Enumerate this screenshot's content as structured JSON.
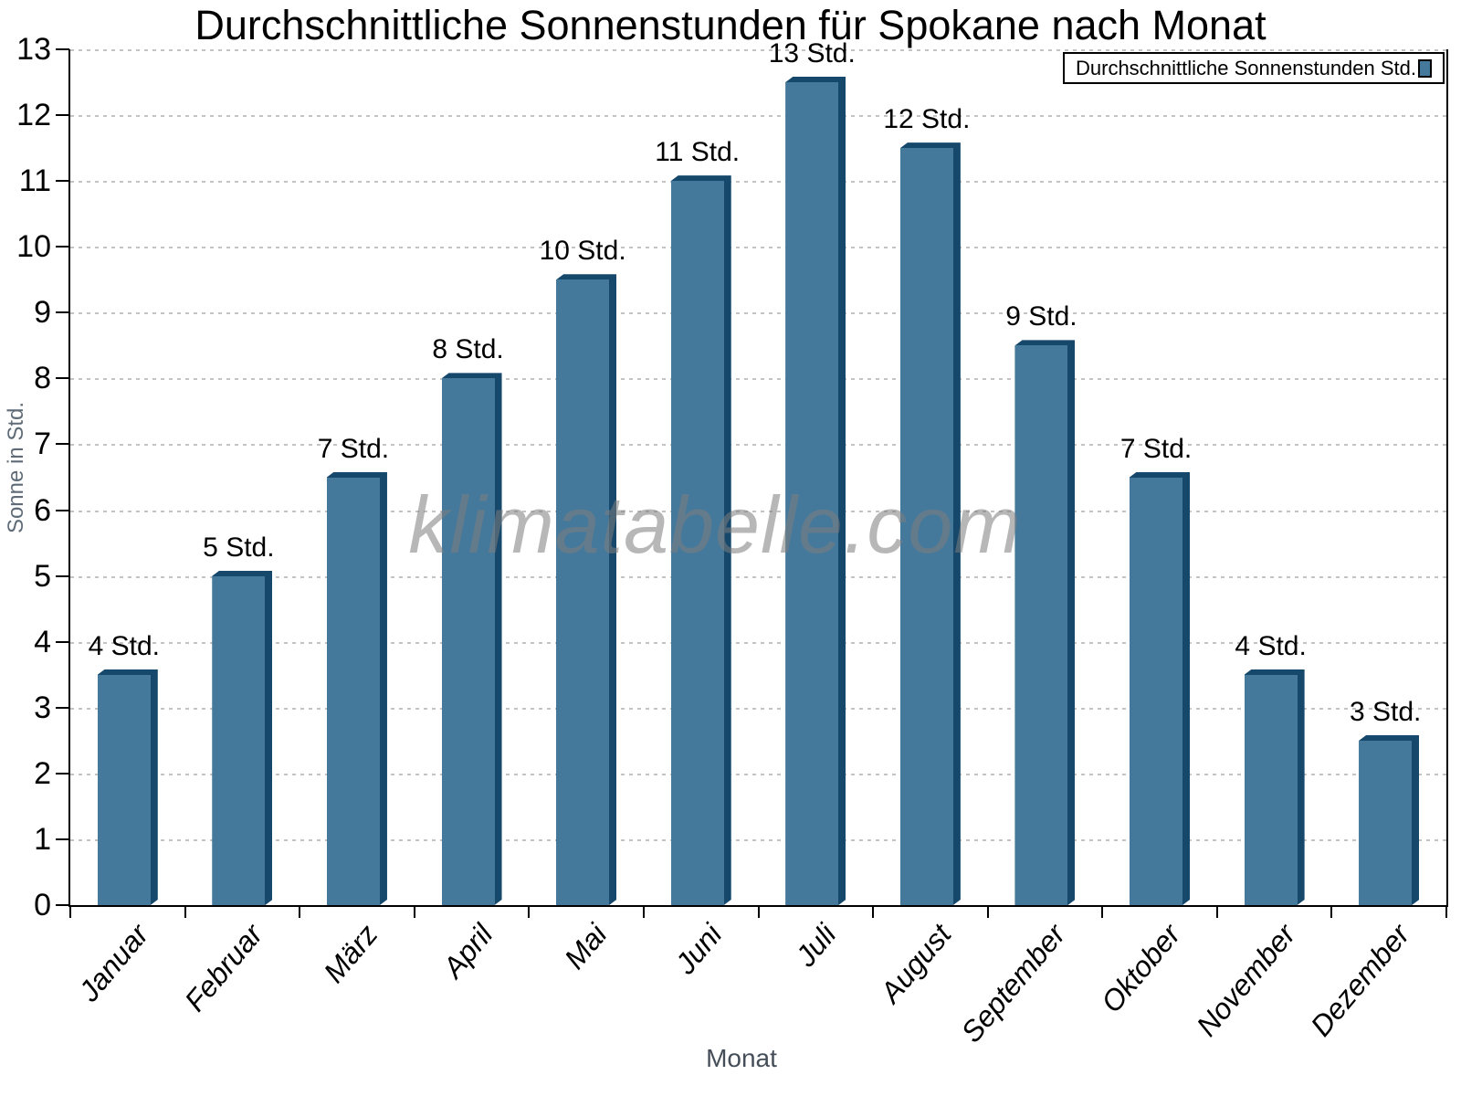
{
  "title": "Durchschnittliche Sonnenstunden für Spokane nach Monat",
  "watermark": "klimatabelle.com",
  "legend": {
    "label": "Durchschnittliche Sonnenstunden Std."
  },
  "chart_data": {
    "type": "bar",
    "title": "Durchschnittliche Sonnenstunden für Spokane nach Monat",
    "xlabel": "Monat",
    "ylabel": "Sonne in Std.",
    "categories": [
      "Januar",
      "Februar",
      "März",
      "April",
      "Mai",
      "Juni",
      "Juli",
      "August",
      "September",
      "Oktober",
      "November",
      "Dezember"
    ],
    "values": [
      3.5,
      5.0,
      6.5,
      8.0,
      9.5,
      11.0,
      12.5,
      11.5,
      8.5,
      6.5,
      3.5,
      2.5
    ],
    "bar_labels": [
      "4 Std.",
      "5 Std.",
      "7 Std.",
      "8 Std.",
      "10 Std.",
      "11 Std.",
      "13 Std.",
      "12 Std.",
      "9 Std.",
      "7 Std.",
      "4 Std.",
      "3 Std."
    ],
    "ylim": [
      0,
      13
    ],
    "yticks": [
      0,
      1,
      2,
      3,
      4,
      5,
      6,
      7,
      8,
      9,
      10,
      11,
      12,
      13
    ],
    "grid": true,
    "grid_style": "dashed",
    "legend_entries": [
      "Durchschnittliche Sonnenstunden Std."
    ],
    "legend_position": "top-right",
    "colors": {
      "bar": "#45799c",
      "bar_dark": "#16486c",
      "grid": "#c3c3c3",
      "axis": "#000000",
      "ylabel": "#5f6b77",
      "xlabel": "#454e58",
      "watermark": "#7d7d7d"
    }
  }
}
